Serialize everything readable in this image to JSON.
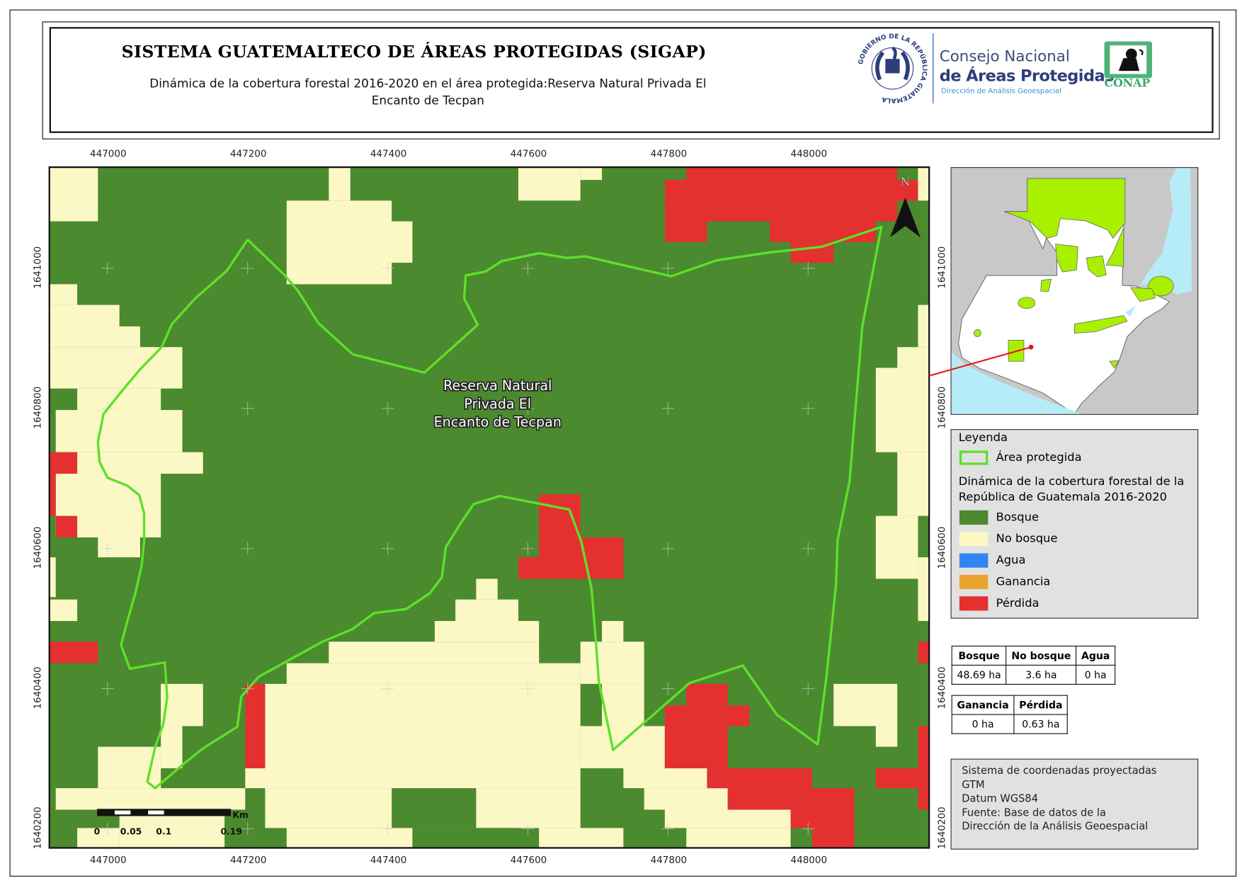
{
  "header": {
    "title": "SISTEMA GUATEMALTECO DE ÁREAS PROTEGIDAS  (SIGAP)",
    "subtitle_line1": "Dinámica de la cobertura forestal 2016-2020 en el área protegida:Reserva Natural Privada El",
    "subtitle_line2": "Encanto de Tecpan"
  },
  "logos": {
    "seal_text": "GOBIERNO DE LA REPÚBLICA GUATEMALA",
    "conap_line1": "Consejo Nacional",
    "conap_line2": "de Áreas Protegidas",
    "conap_line3": "Dirección de Análisis Geoespacial",
    "conap_badge": "CONAP"
  },
  "map": {
    "x_ticks": [
      "447000",
      "447200",
      "447400",
      "447600",
      "447800",
      "448000"
    ],
    "y_ticks": [
      "1641000",
      "1640800",
      "1640600",
      "1640400",
      "1640200"
    ],
    "area_label": [
      "Reserva Natural",
      "Privada El",
      "Encanto de Tecpan"
    ],
    "north_label": "N",
    "scale_bar": {
      "unit": "Km",
      "labels": [
        "0",
        "0.05",
        "0.1",
        "0.19"
      ]
    }
  },
  "legend": {
    "title": "Leyenda",
    "protected_area": "Área protegida",
    "section_title": "Dinámica de la cobertura forestal de la República de Guatemala 2016-2020",
    "items": [
      {
        "label": "Bosque",
        "color": "#4b8a2e"
      },
      {
        "label": "No bosque",
        "color": "#fbf8c6"
      },
      {
        "label": "Agua",
        "color": "#2f86f2"
      },
      {
        "label": "Ganancia",
        "color": "#e9a42e"
      },
      {
        "label": "Pérdida",
        "color": "#e53030"
      }
    ],
    "boundary_color": "#5ee02a"
  },
  "stats_table_1": {
    "headers": [
      "Bosque",
      "No bosque",
      "Agua"
    ],
    "values": [
      "48.69 ha",
      "3.6 ha",
      "0 ha"
    ]
  },
  "stats_table_2": {
    "headers": [
      "Ganancia",
      "Pérdida"
    ],
    "values": [
      "0 ha",
      "0.63 ha"
    ]
  },
  "info": {
    "lines": [
      "Sistema de coordenadas proyectadas",
      "GTM",
      "Datum WGS84",
      "Fuente: Base de datos de la",
      "Dirección de la Análisis Geoespacial"
    ]
  }
}
